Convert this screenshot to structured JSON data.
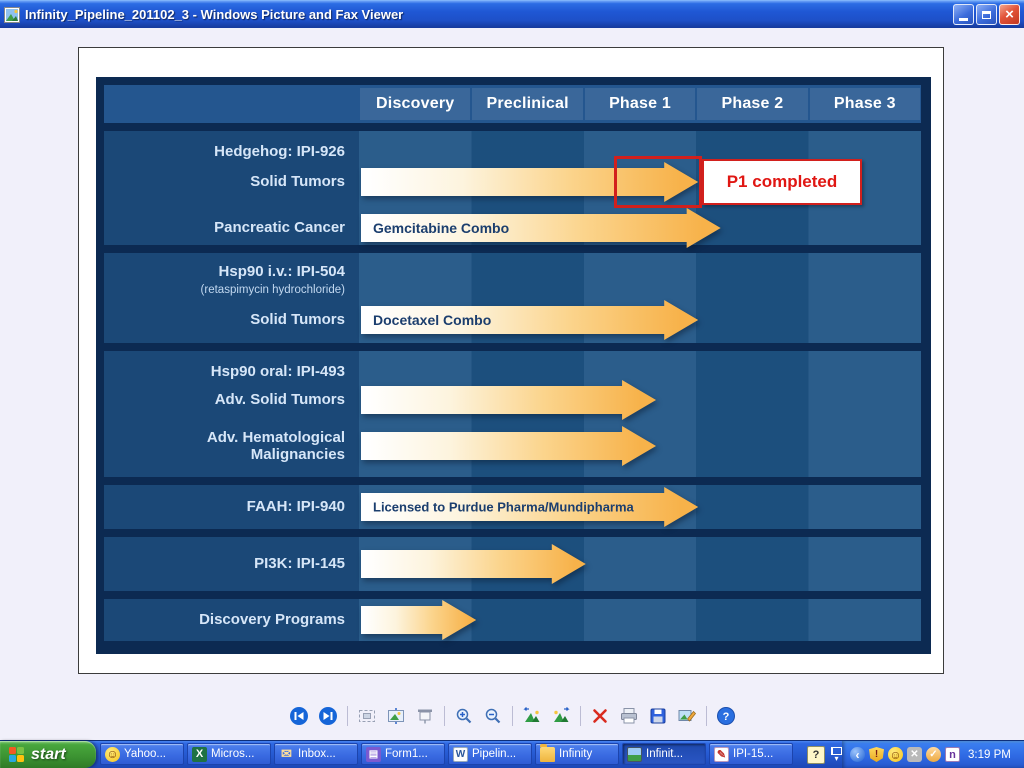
{
  "window": {
    "title": "Infinity_Pipeline_201102_3 - Windows Picture and Fax Viewer",
    "controls": {
      "close_glyph": "×"
    }
  },
  "pipeline": {
    "columns": [
      "Discovery",
      "Preclinical",
      "Phase 1",
      "Phase 2",
      "Phase 3"
    ],
    "groups": [
      {
        "heading": "Hedgehog: IPI-926",
        "rows": [
          {
            "label": "Solid Tumors",
            "arrow_label": "",
            "phase_reached": "Phase 1",
            "tip_pct": 60,
            "annotation": {
              "text": "P1 completed"
            }
          },
          {
            "label": "Pancreatic Cancer",
            "arrow_label": "Gemcitabine Combo",
            "phase_reached": "Phase 1",
            "tip_pct": 64
          }
        ]
      },
      {
        "heading": "Hsp90 i.v.: IPI-504",
        "subheading": "(retaspimycin hydrochloride)",
        "rows": [
          {
            "label": "Solid Tumors",
            "arrow_label": "Docetaxel Combo",
            "phase_reached": "Phase 1",
            "tip_pct": 60
          }
        ]
      },
      {
        "heading": "Hsp90 oral: IPI-493",
        "rows": [
          {
            "label": "Adv. Solid Tumors",
            "arrow_label": "",
            "phase_reached": "Phase 1",
            "tip_pct": 52.5
          },
          {
            "label": "Adv. Hematological\nMalignancies",
            "arrow_label": "",
            "phase_reached": "Phase 1",
            "tip_pct": 52.5
          }
        ]
      },
      {
        "rows": [
          {
            "label": "FAAH: IPI-940",
            "arrow_label": "Licensed to Purdue Pharma/Mundipharma",
            "phase_reached": "Phase 1",
            "tip_pct": 60
          }
        ]
      },
      {
        "rows": [
          {
            "label": "PI3K: IPI-145",
            "arrow_label": "",
            "phase_reached": "Preclinical",
            "tip_pct": 40
          }
        ]
      },
      {
        "rows": [
          {
            "label": "Discovery Programs",
            "arrow_label": "",
            "phase_reached": "Discovery",
            "tip_pct": 20.5
          }
        ]
      }
    ]
  },
  "viewer_toolbar": {
    "icons": [
      "previous-image",
      "next-image",
      "best-fit",
      "actual-size",
      "slideshow",
      "zoom-in",
      "zoom-out",
      "rotate-counterclockwise",
      "rotate-clockwise",
      "delete",
      "print",
      "save",
      "edit",
      "help"
    ]
  },
  "taskbar": {
    "start_label": "start",
    "items": [
      {
        "label": "Yahoo...",
        "icon": "yahoo-messenger",
        "glyph": "☺"
      },
      {
        "label": "Micros...",
        "icon": "excel",
        "glyph": "X"
      },
      {
        "label": "Inbox...",
        "icon": "outlook-inbox",
        "glyph": "✉"
      },
      {
        "label": "Form1...",
        "icon": "form-app",
        "glyph": "▤"
      },
      {
        "label": "Pipelin...",
        "icon": "word-document",
        "glyph": "W"
      },
      {
        "label": "Infinity",
        "icon": "folder",
        "glyph": ""
      },
      {
        "label": "Infinit...",
        "icon": "picture-viewer",
        "glyph": "",
        "active": true
      },
      {
        "label": "IPI-15...",
        "icon": "paint-app",
        "glyph": "✎"
      }
    ],
    "pre_tray": {
      "help_glyph": "?"
    },
    "tray": {
      "icons": [
        {
          "name": "hide-icons-chevron",
          "glyph": "‹"
        },
        {
          "name": "security-shield",
          "glyph": "!"
        },
        {
          "name": "yahoo-smiley",
          "glyph": "☺"
        },
        {
          "name": "messenger-x",
          "glyph": "✕"
        },
        {
          "name": "reminder",
          "glyph": "✓"
        },
        {
          "name": "onenote",
          "glyph": "n"
        }
      ],
      "time": "3:19 PM"
    }
  },
  "colors": {
    "accent_orange": "#F6AE3D",
    "navy_frame": "#0C2A52",
    "panel_blue": "#1E5384",
    "header_blue": "#24568F",
    "annotation_red": "#D2201D",
    "taskbar_blue": "#2558CF",
    "start_green": "#3B9231"
  }
}
